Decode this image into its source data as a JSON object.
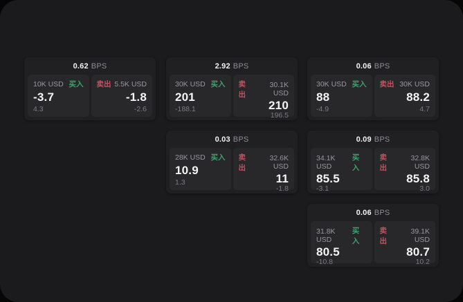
{
  "labels": {
    "bps_unit": "BPS",
    "buy": "买入",
    "sell": "卖出"
  },
  "colors": {
    "buy_green": "#3fa06b",
    "sell_red": "#c84f5f",
    "app_background": "#1b1b1d",
    "card_background": "#202022",
    "panel_background": "#28282b"
  },
  "cards": [
    {
      "bps": "0.62",
      "row": 1,
      "col": 1,
      "buy": {
        "notional": "10K USD",
        "price": "-3.7",
        "delta": "4.3"
      },
      "sell": {
        "notional": "5.5K USD",
        "price": "-1.8",
        "delta": "-2.6"
      }
    },
    {
      "bps": "2.92",
      "row": 1,
      "col": 2,
      "buy": {
        "notional": "30K USD",
        "price": "201",
        "delta": "-188.1"
      },
      "sell": {
        "notional": "30.1K USD",
        "price": "210",
        "delta": "196.5"
      }
    },
    {
      "bps": "0.06",
      "row": 1,
      "col": 3,
      "buy": {
        "notional": "30K USD",
        "price": "88",
        "delta": "-4.9"
      },
      "sell": {
        "notional": "30K USD",
        "price": "88.2",
        "delta": "4.7"
      }
    },
    {
      "bps": "0.03",
      "row": 2,
      "col": 2,
      "buy": {
        "notional": "28K USD",
        "price": "10.9",
        "delta": "1.3"
      },
      "sell": {
        "notional": "32.6K USD",
        "price": "11",
        "delta": "-1.8"
      }
    },
    {
      "bps": "0.09",
      "row": 2,
      "col": 3,
      "buy": {
        "notional": "34.1K USD",
        "price": "85.5",
        "delta": "-3.1"
      },
      "sell": {
        "notional": "32.8K USD",
        "price": "85.8",
        "delta": "3.0"
      }
    },
    {
      "bps": "0.06",
      "row": 3,
      "col": 3,
      "buy": {
        "notional": "31.8K USD",
        "price": "80.5",
        "delta": "-10.8"
      },
      "sell": {
        "notional": "39.1K USD",
        "price": "80.7",
        "delta": "10.2"
      }
    }
  ]
}
